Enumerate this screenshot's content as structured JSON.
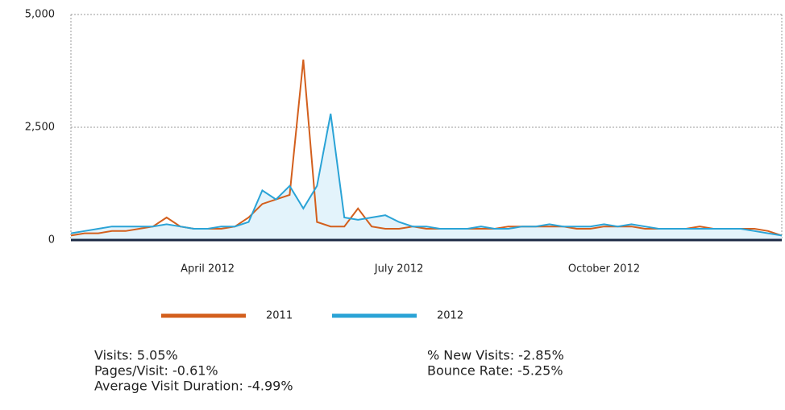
{
  "chart_data": {
    "type": "line",
    "categories": [
      null,
      null,
      null,
      null,
      null,
      null,
      null,
      null,
      null,
      null,
      "April 2012",
      null,
      null,
      null,
      null,
      null,
      null,
      null,
      null,
      null,
      null,
      null,
      null,
      null,
      "July 2012",
      null,
      null,
      null,
      null,
      null,
      null,
      null,
      null,
      null,
      null,
      null,
      null,
      null,
      null,
      "October 2012",
      null,
      null,
      null,
      null,
      null,
      null,
      null,
      null,
      null,
      null,
      null,
      null,
      null
    ],
    "series": [
      {
        "name": "2011",
        "color": "#d35f1d",
        "values": [
          100,
          150,
          150,
          200,
          200,
          250,
          300,
          500,
          300,
          250,
          250,
          250,
          300,
          500,
          800,
          900,
          1000,
          4000,
          400,
          300,
          300,
          700,
          300,
          250,
          250,
          300,
          250,
          250,
          250,
          250,
          250,
          250,
          300,
          300,
          300,
          300,
          300,
          250,
          250,
          300,
          300,
          300,
          250,
          250,
          250,
          250,
          300,
          250,
          250,
          250,
          250,
          200,
          100
        ]
      },
      {
        "name": "2012",
        "color": "#2aa3d6",
        "values": [
          150,
          200,
          250,
          300,
          300,
          300,
          300,
          350,
          300,
          250,
          250,
          300,
          300,
          400,
          1100,
          900,
          1200,
          700,
          1200,
          2800,
          500,
          450,
          500,
          550,
          400,
          300,
          300,
          250,
          250,
          250,
          300,
          250,
          250,
          300,
          300,
          350,
          300,
          300,
          300,
          350,
          300,
          350,
          300,
          250,
          250,
          250,
          250,
          250,
          250,
          250,
          200,
          150,
          100
        ]
      }
    ],
    "ylim": [
      0,
      5000
    ],
    "yticks": [
      {
        "value": 5000,
        "label": "5,000"
      },
      {
        "value": 2500,
        "label": "2,500"
      },
      0
    ],
    "grid": true
  },
  "stats": {
    "left": [
      "Visits: 5.05%",
      "Pages/Visit: -0.61%",
      "Average Visit Duration: -4.99%"
    ],
    "right": [
      "% New Visits: -2.85%",
      "Bounce Rate: -5.25%"
    ]
  }
}
